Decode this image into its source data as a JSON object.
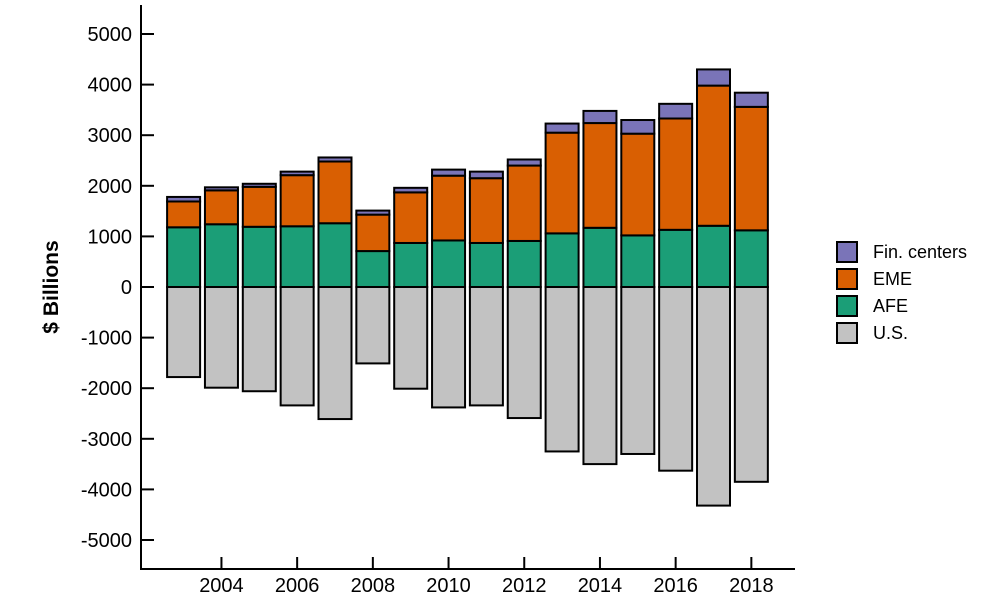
{
  "chart_data": {
    "type": "bar",
    "stacked": true,
    "title": "",
    "ylabel": "$ Billions",
    "xlabel": "",
    "ylim": [
      -5000,
      5000
    ],
    "grid": false,
    "legend_position": "right",
    "y_ticks": [
      5000,
      4000,
      3000,
      2000,
      1000,
      0,
      -1000,
      -2000,
      -3000,
      -4000,
      -5000
    ],
    "x_tick_years": [
      2004,
      2006,
      2008,
      2010,
      2012,
      2014,
      2016,
      2018
    ],
    "categories": [
      2003,
      2004,
      2005,
      2006,
      2007,
      2008,
      2009,
      2010,
      2011,
      2012,
      2013,
      2014,
      2015,
      2016,
      2017,
      2018
    ],
    "series": [
      {
        "name": "Fin. centers",
        "color": "#7a74b8",
        "values": [
          90,
          60,
          60,
          70,
          80,
          80,
          90,
          120,
          130,
          120,
          180,
          240,
          270,
          290,
          320,
          280
        ]
      },
      {
        "name": "EME",
        "color": "#d95f02",
        "values": [
          510,
          670,
          790,
          1010,
          1220,
          720,
          1000,
          1280,
          1280,
          1490,
          1990,
          2070,
          2010,
          2200,
          2770,
          2440
        ]
      },
      {
        "name": "AFE",
        "color": "#1b9e77",
        "values": [
          1180,
          1240,
          1190,
          1200,
          1260,
          710,
          870,
          920,
          870,
          910,
          1060,
          1170,
          1020,
          1130,
          1210,
          1120
        ]
      },
      {
        "name": "U.S.",
        "color": "#c2c2c2",
        "values": [
          -1780,
          -1990,
          -2060,
          -2340,
          -2610,
          -1510,
          -2010,
          -2380,
          -2340,
          -2590,
          -3250,
          -3500,
          -3300,
          -3630,
          -4320,
          -3850
        ]
      }
    ],
    "bar_border_color": "#000000",
    "axis_color": "#000000"
  }
}
